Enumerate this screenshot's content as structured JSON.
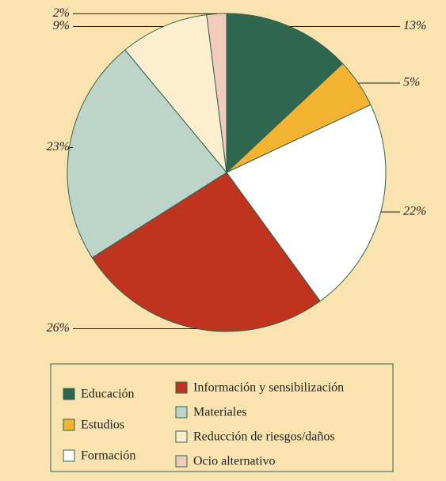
{
  "chart_data": {
    "type": "pie",
    "categories": [
      "Educación",
      "Estudios",
      "Formación",
      "Información y sensibilización",
      "Materiales",
      "Reducción de riesgos/daños",
      "Ocio alternativo"
    ],
    "values": [
      13,
      5,
      22,
      26,
      23,
      9,
      2
    ],
    "value_labels": [
      "13%",
      "5%",
      "22%",
      "26%",
      "23%",
      "9%",
      "2%"
    ],
    "colors": [
      "#2f6650",
      "#f4b330",
      "#ffffff",
      "#c0331f",
      "#bcd5c8",
      "#fdeed0",
      "#f3cbbd"
    ],
    "legend": "bottom"
  }
}
